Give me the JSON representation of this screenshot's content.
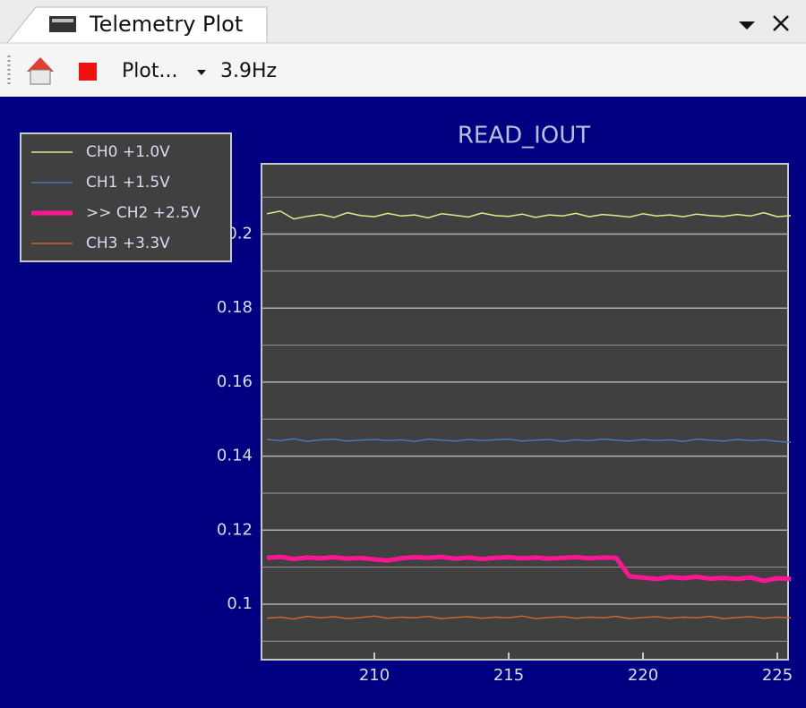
{
  "window": {
    "tab_title": "Telemetry Plot"
  },
  "toolbar": {
    "plot_menu": "Plot...",
    "rate": "3.9Hz"
  },
  "chart_data": {
    "type": "line",
    "title": "READ_IOUT",
    "x": [
      206,
      206.5,
      207,
      207.5,
      208,
      208.5,
      209,
      209.5,
      210,
      210.5,
      211,
      211.5,
      212,
      212.5,
      213,
      213.5,
      214,
      214.5,
      215,
      215.5,
      216,
      216.5,
      217,
      217.5,
      218,
      218.5,
      219,
      219.5,
      220,
      220.5,
      221,
      221.5,
      222,
      222.5,
      223,
      223.5,
      224,
      224.5,
      225,
      225.5
    ],
    "series": [
      {
        "name": "CH0 +1.0V",
        "color": "#e6e68c",
        "width": 1.5,
        "values": [
          0.2055,
          0.2062,
          0.2041,
          0.2048,
          0.2053,
          0.2045,
          0.2058,
          0.205,
          0.2047,
          0.2056,
          0.2049,
          0.2052,
          0.2044,
          0.2055,
          0.2051,
          0.2046,
          0.2057,
          0.205,
          0.2048,
          0.2054,
          0.2045,
          0.2052,
          0.2049,
          0.2056,
          0.2047,
          0.2053,
          0.205,
          0.2046,
          0.2055,
          0.2049,
          0.2052,
          0.2047,
          0.2054,
          0.205,
          0.2048,
          0.2053,
          0.2049,
          0.2058,
          0.2047,
          0.205
        ]
      },
      {
        "name": "CH1 +1.5V",
        "color": "#4a78b8",
        "width": 1.5,
        "values": [
          0.1445,
          0.1442,
          0.1447,
          0.144,
          0.1444,
          0.1446,
          0.1441,
          0.1443,
          0.1445,
          0.1442,
          0.1444,
          0.144,
          0.1446,
          0.1443,
          0.1441,
          0.1445,
          0.1442,
          0.1444,
          0.1446,
          0.1441,
          0.1443,
          0.1445,
          0.144,
          0.1444,
          0.1442,
          0.1446,
          0.1443,
          0.1441,
          0.1445,
          0.1442,
          0.1444,
          0.144,
          0.1446,
          0.1443,
          0.1441,
          0.1445,
          0.1442,
          0.1444,
          0.144,
          0.1437
        ]
      },
      {
        "name": ">> CH2 +2.5V",
        "color": "#ff1493",
        "width": 5,
        "values": [
          0.1125,
          0.1128,
          0.1122,
          0.1126,
          0.1124,
          0.1127,
          0.1123,
          0.1125,
          0.1121,
          0.1118,
          0.1124,
          0.1127,
          0.1125,
          0.1128,
          0.1123,
          0.1126,
          0.1122,
          0.1125,
          0.1127,
          0.1124,
          0.1126,
          0.1123,
          0.1125,
          0.1127,
          0.1124,
          0.1126,
          0.1125,
          0.1075,
          0.1072,
          0.1068,
          0.1073,
          0.107,
          0.1074,
          0.1069,
          0.1071,
          0.1068,
          0.1072,
          0.1063,
          0.107,
          0.1068
        ]
      },
      {
        "name": "CH3 +3.3V",
        "color": "#c8692e",
        "width": 1.5,
        "values": [
          0.0962,
          0.0965,
          0.096,
          0.0967,
          0.0963,
          0.0966,
          0.0961,
          0.0964,
          0.0968,
          0.0962,
          0.0965,
          0.0963,
          0.0967,
          0.0961,
          0.0964,
          0.0966,
          0.0962,
          0.0965,
          0.0963,
          0.0968,
          0.0961,
          0.0964,
          0.0966,
          0.0962,
          0.0965,
          0.0963,
          0.0967,
          0.0961,
          0.0964,
          0.0966,
          0.0962,
          0.0965,
          0.0963,
          0.0967,
          0.0961,
          0.0964,
          0.0966,
          0.0962,
          0.0965,
          0.0963
        ]
      }
    ],
    "xlim": [
      205.8,
      225.4
    ],
    "xticks": [
      210,
      215,
      220,
      225
    ],
    "ylim": [
      0.085,
      0.219
    ],
    "yticks": [
      0.1,
      0.12,
      0.14,
      0.16,
      0.18,
      0.2
    ],
    "yminorticks": [
      0.09,
      0.11,
      0.13,
      0.15,
      0.17,
      0.19,
      0.21
    ],
    "grid": true,
    "legend": "upper-left"
  }
}
